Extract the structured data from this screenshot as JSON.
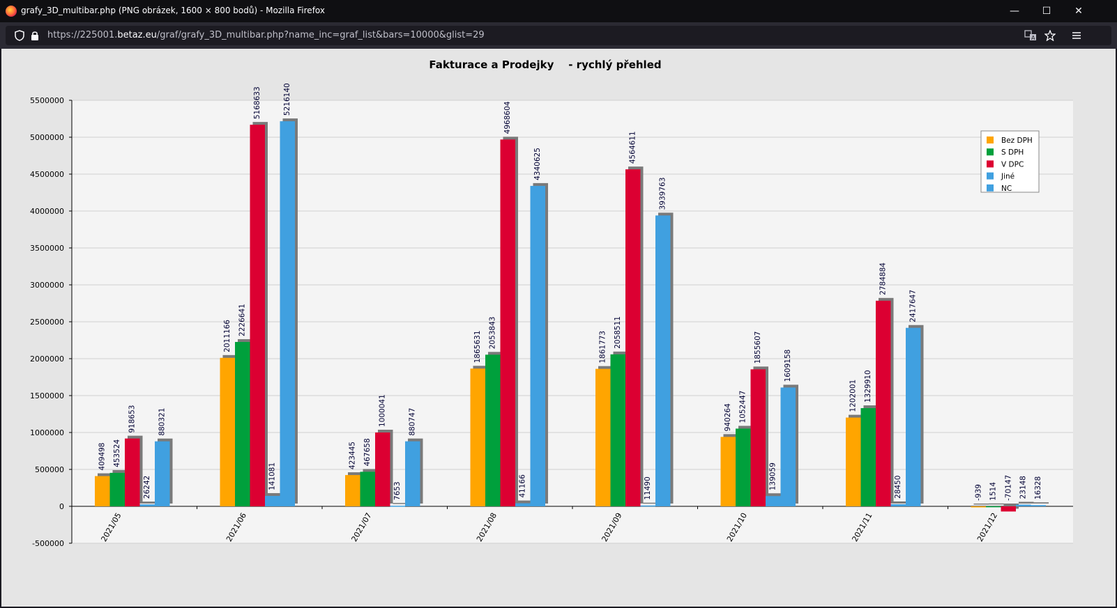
{
  "window": {
    "title": "grafy_3D_multibar.php (PNG obrázek, 1600 × 800 bodů) - Mozilla Firefox",
    "minimize_label": "—",
    "maximize_label": "☐",
    "close_label": "✕"
  },
  "urlbar": {
    "url_prefix": "https://225001.",
    "url_domain": "betaz.eu",
    "url_path": "/graf/grafy_3D_multibar.php?name_inc=graf_list&bars=10000&glist=29",
    "icons": [
      "shield-icon",
      "lock-icon",
      "translate-icon",
      "bookmark-star-icon",
      "menu-icon"
    ]
  },
  "chart_data": {
    "type": "bar",
    "title": "Fakturace a Prodejky    - rychlý přehled",
    "xlabel": "",
    "ylabel": "",
    "ylim": [
      -500000,
      5500000
    ],
    "yticks": [
      -500000,
      0,
      500000,
      1000000,
      1500000,
      2000000,
      2500000,
      3000000,
      3500000,
      4000000,
      4500000,
      5000000,
      5500000
    ],
    "grid": true,
    "legend_position": "top-right",
    "categories": [
      "2021/05",
      "2021/06",
      "2021/07",
      "2021/08",
      "2021/09",
      "2021/10",
      "2021/11",
      "2021/12"
    ],
    "series": [
      {
        "name": "Bez DPH",
        "color": "#ffa500",
        "values": [
          409498,
          2011166,
          423445,
          1865631,
          1861773,
          940264,
          1202001,
          -939
        ]
      },
      {
        "name": "S DPH",
        "color": "#00a03c",
        "values": [
          453524,
          2226641,
          467658,
          2053843,
          2058511,
          1052447,
          1329910,
          1514
        ]
      },
      {
        "name": "V DPC",
        "color": "#dc0032",
        "values": [
          918653,
          5168633,
          1000041,
          4968604,
          4564611,
          1855607,
          2784884,
          -70147
        ]
      },
      {
        "name": "Jiné",
        "color": "#40a0e0",
        "values": [
          26242,
          141081,
          7653,
          41166,
          11490,
          139059,
          28450,
          23148
        ]
      },
      {
        "name": "NC",
        "color": "#40a0e0",
        "values": [
          880321,
          5216140,
          880747,
          4340625,
          3939763,
          1609158,
          2417647,
          16328
        ]
      }
    ]
  }
}
